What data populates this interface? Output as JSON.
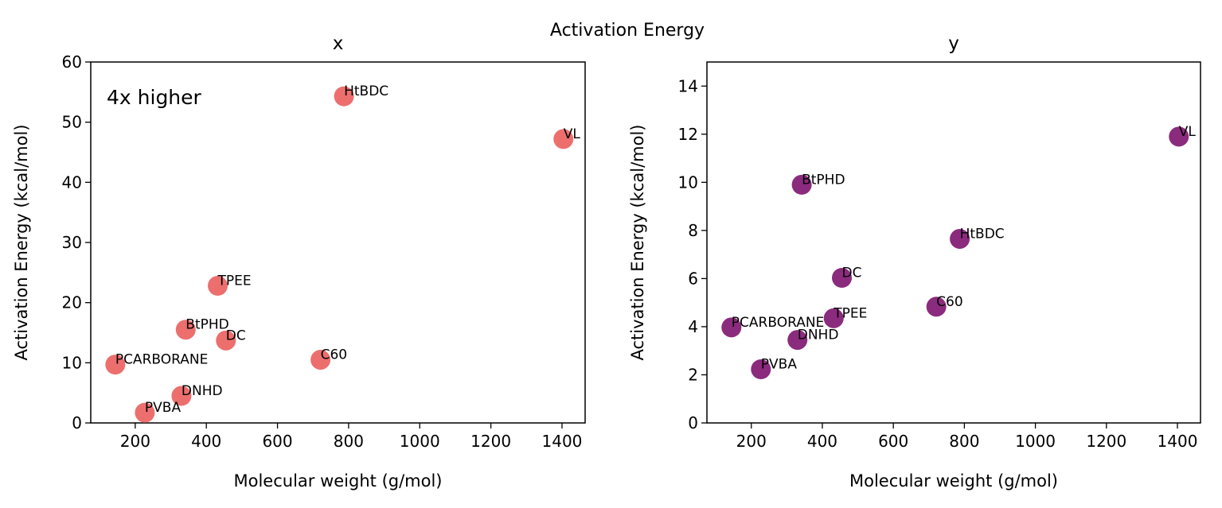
{
  "figure": {
    "suptitle": "Activation Energy"
  },
  "chart_data": [
    {
      "type": "scatter",
      "title": "x",
      "xlabel": "Molecular weight (g/mol)",
      "ylabel": "Activation Energy (kcal/mol)",
      "xlim": [
        75,
        1465
      ],
      "ylim": [
        0,
        60
      ],
      "xticks": [
        200,
        400,
        600,
        800,
        1000,
        1200,
        1400
      ],
      "yticks": [
        0,
        10,
        20,
        30,
        40,
        50,
        60
      ],
      "annotation": "4x higher",
      "marker_color": "#ec6f6e",
      "grid": false,
      "points": [
        {
          "label": "HtBDC",
          "x": 787,
          "y": 54.3
        },
        {
          "label": "VL",
          "x": 1404,
          "y": 47.2
        },
        {
          "label": "TPEE",
          "x": 432,
          "y": 22.8
        },
        {
          "label": "BtPHD",
          "x": 342,
          "y": 15.5
        },
        {
          "label": "DC",
          "x": 455,
          "y": 13.7
        },
        {
          "label": "C60",
          "x": 721,
          "y": 10.5
        },
        {
          "label": "PCARBORANE",
          "x": 144,
          "y": 9.7
        },
        {
          "label": "DNHD",
          "x": 330,
          "y": 4.5
        },
        {
          "label": "PVBA",
          "x": 227,
          "y": 1.7
        }
      ]
    },
    {
      "type": "scatter",
      "title": "y",
      "xlabel": "Molecular weight (g/mol)",
      "ylabel": "Activation Energy (kcal/mol)",
      "xlim": [
        75,
        1465
      ],
      "ylim": [
        0,
        15
      ],
      "xticks": [
        200,
        400,
        600,
        800,
        1000,
        1200,
        1400
      ],
      "yticks": [
        0,
        2,
        4,
        6,
        8,
        10,
        12,
        14
      ],
      "marker_color": "#8b2b7d",
      "grid": false,
      "points": [
        {
          "label": "VL",
          "x": 1404,
          "y": 11.9
        },
        {
          "label": "BtPHD",
          "x": 342,
          "y": 9.9
        },
        {
          "label": "HtBDC",
          "x": 787,
          "y": 7.65
        },
        {
          "label": "DC",
          "x": 455,
          "y": 6.03
        },
        {
          "label": "C60",
          "x": 721,
          "y": 4.83
        },
        {
          "label": "TPEE",
          "x": 432,
          "y": 4.35
        },
        {
          "label": "PCARBORANE",
          "x": 144,
          "y": 3.97
        },
        {
          "label": "DNHD",
          "x": 330,
          "y": 3.45
        },
        {
          "label": "PVBA",
          "x": 227,
          "y": 2.23
        }
      ]
    }
  ]
}
